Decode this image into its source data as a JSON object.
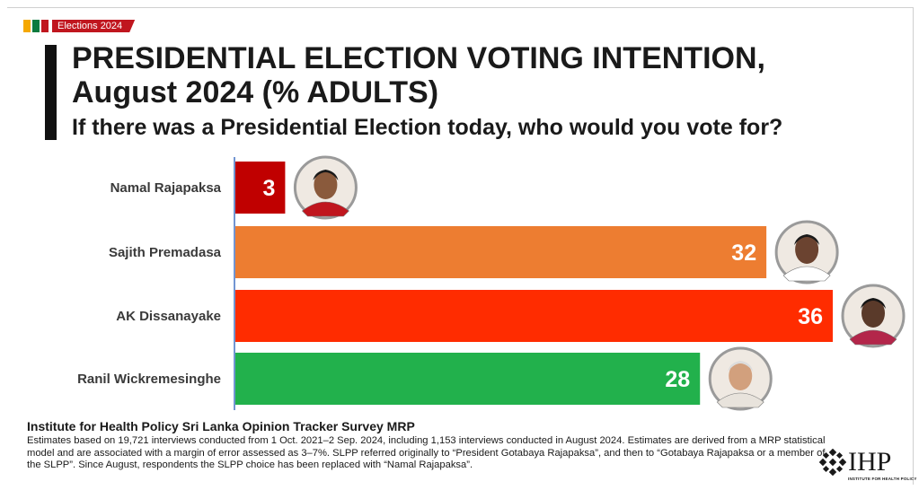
{
  "header": {
    "tag_label": "Elections 2024",
    "tag_colors": [
      "#f5a800",
      "#0b7a3e",
      "#c0161e"
    ],
    "title_line1": "PRESIDENTIAL ELECTION VOTING INTENTION,",
    "title_line2": "August 2024 (% ADULTS)",
    "subtitle": "If there was a Presidential Election today, who would you vote for?"
  },
  "chart_data": {
    "type": "bar",
    "orientation": "horizontal",
    "categories": [
      "Namal Rajapaksa",
      "Sajith Premadasa",
      "AK Dissanayake",
      "Ranil Wickremesinghe"
    ],
    "values": [
      3,
      32,
      36,
      28
    ],
    "colors": [
      "#c00000",
      "#ed7d31",
      "#ff2c00",
      "#22b14c"
    ],
    "data_labels": [
      "3",
      "32",
      "36",
      "28"
    ],
    "portrait_icons": [
      "portrait-namal-icon",
      "portrait-sajith-icon",
      "portrait-ak-icon",
      "portrait-ranil-icon"
    ],
    "xlim": [
      0,
      36
    ],
    "grid": false,
    "legend": "none"
  },
  "footer": {
    "source": "Institute for Health Policy Sri Lanka Opinion Tracker Survey MRP",
    "note": "Estimates based on 19,721 interviews conducted from 1 Oct. 2021–2 Sep. 2024, including 1,153 interviews conducted in August 2024. Estimates are derived from a MRP statistical model and are associated with a margin of error assessed as 3–7%. SLPP referred originally to “President Gotabaya Rajapaksa”, and then to “Gotabaya Rajapaksa or a member of the SLPP”. Since August, respondents the SLPP choice has been replaced with “Namal Rajapaksa”.",
    "logo_text": "IHP",
    "logo_subtext": "INSTITUTE FOR HEALTH POLICY"
  }
}
